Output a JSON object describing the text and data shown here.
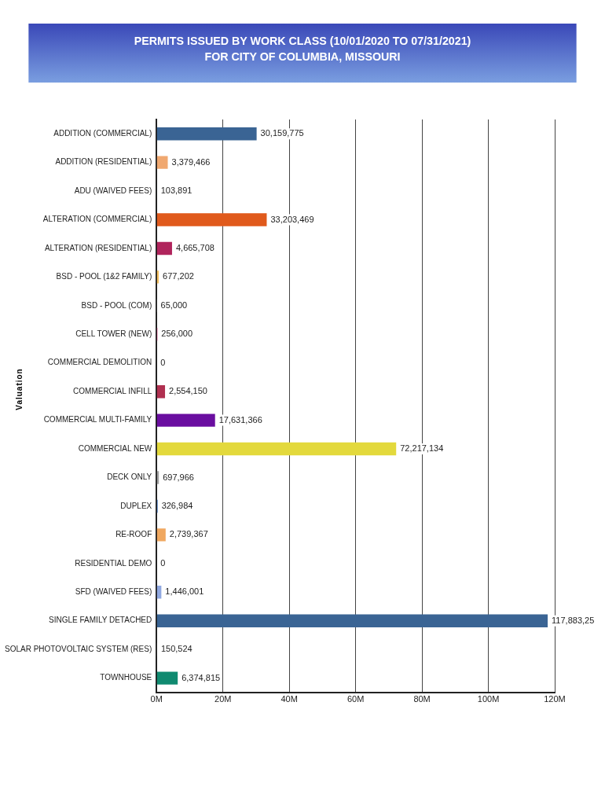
{
  "chart_data": {
    "type": "bar",
    "orientation": "horizontal",
    "title": "PERMITS ISSUED BY WORK CLASS (10/01/2020 TO 07/31/2021)",
    "subtitle": "FOR CITY OF COLUMBIA, MISSOURI",
    "ylabel": "Valuation",
    "categories": [
      "ADDITION (COMMERCIAL)",
      "ADDITION (RESIDENTIAL)",
      "ADU (WAIVED FEES)",
      "ALTERATION (COMMERCIAL)",
      "ALTERATION (RESIDENTIAL)",
      "BSD - POOL (1&2 FAMILY)",
      "BSD - POOL (COM)",
      "CELL TOWER (NEW)",
      "COMMERCIAL DEMOLITION",
      "COMMERCIAL INFILL",
      "COMMERCIAL MULTI-FAMILY",
      "COMMERCIAL NEW",
      "DECK ONLY",
      "DUPLEX",
      "RE-ROOF",
      "RESIDENTIAL DEMO",
      "SFD (WAIVED FEES)",
      "SINGLE FAMILY DETACHED",
      "SOLAR PHOTOVOLTAIC SYSTEM (RES)",
      "TOWNHOUSE"
    ],
    "values": [
      30159775,
      3379466,
      103891,
      33203469,
      4665708,
      677202,
      65000,
      256000,
      0,
      2554150,
      17631366,
      72217134,
      697966,
      326984,
      2739367,
      0,
      1446001,
      117883250,
      150524,
      6374815
    ],
    "value_labels": [
      "30,159,775",
      "3,379,466",
      "103,891",
      "33,203,469",
      "4,665,708",
      "677,202",
      "65,000",
      "256,000",
      "0",
      "2,554,150",
      "17,631,366",
      "72,217,134",
      "697,966",
      "326,984",
      "2,739,367",
      "0",
      "1,446,001",
      "117,883,25",
      "150,524",
      "6,374,815"
    ],
    "colors": [
      "#3a6494",
      "#f0a870",
      "#3a6494",
      "#e05a1c",
      "#b0245c",
      "#f5c060",
      "#888888",
      "#e04080",
      "#888888",
      "#b03050",
      "#6a0ea0",
      "#e3d93c",
      "#a0a0a0",
      "#3a70c0",
      "#f0a860",
      "#888888",
      "#90a8e0",
      "#3a6494",
      "#888888",
      "#108a70"
    ],
    "xlim": [
      0,
      120000000
    ],
    "xticks": [
      {
        "value": 0,
        "label": "0M"
      },
      {
        "value": 20000000,
        "label": "20M"
      },
      {
        "value": 40000000,
        "label": "40M"
      },
      {
        "value": 60000000,
        "label": "60M"
      },
      {
        "value": 80000000,
        "label": "80M"
      },
      {
        "value": 100000000,
        "label": "100M"
      },
      {
        "value": 120000000,
        "label": "120M"
      }
    ],
    "grid": "x",
    "legend": false
  }
}
